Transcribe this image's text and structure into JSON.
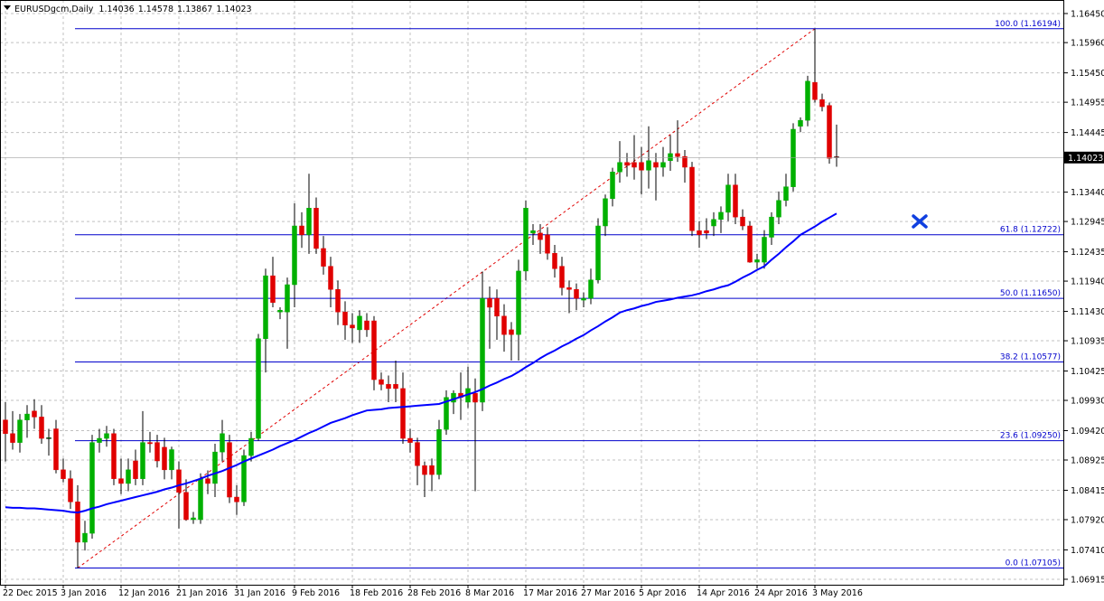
{
  "chart_data": {
    "type": "candlestick",
    "title": "EURUSDgcm,Daily",
    "up_color": "#00b000",
    "down_color": "#e00000",
    "grid": true,
    "ylim": [
      1.06823,
      1.16678
    ],
    "yticks": [
      {
        "value": 1.1645,
        "label": "1.16450"
      },
      {
        "value": 1.1596,
        "label": "1.15960"
      },
      {
        "value": 1.1545,
        "label": "1.15450"
      },
      1.14955,
      1.14445,
      {
        "value": 1.1344,
        "label": "1.13440"
      },
      1.12945,
      1.12435,
      {
        "value": 1.1194,
        "label": "1.11940"
      },
      {
        "value": 1.1143,
        "label": "1.11430"
      },
      1.10935,
      1.10425,
      {
        "value": 1.0993,
        "label": "1.09930"
      },
      {
        "value": 1.0942,
        "label": "1.09420"
      },
      1.08925,
      1.08415,
      {
        "value": 1.0792,
        "label": "1.07920"
      },
      {
        "value": 1.0741,
        "label": "1.07410"
      },
      1.06915
    ],
    "categories": [
      "22 Dec 2015",
      null,
      null,
      null,
      null,
      null,
      null,
      null,
      "3 Jan 2016",
      null,
      null,
      null,
      null,
      null,
      null,
      null,
      "12 Jan 2016",
      null,
      null,
      null,
      null,
      null,
      null,
      null,
      "21 Jan 2016",
      null,
      null,
      null,
      null,
      null,
      null,
      null,
      "31 Jan 2016",
      null,
      null,
      null,
      null,
      null,
      null,
      null,
      "9 Feb 2016",
      null,
      null,
      null,
      null,
      null,
      null,
      null,
      "18 Feb 2016",
      null,
      null,
      null,
      null,
      null,
      null,
      null,
      "28 Feb 2016",
      null,
      null,
      null,
      null,
      null,
      null,
      null,
      "8 Mar 2016",
      null,
      null,
      null,
      null,
      null,
      null,
      null,
      "17 Mar 2016",
      null,
      null,
      null,
      null,
      null,
      null,
      null,
      "27 Mar 2016",
      null,
      null,
      null,
      null,
      null,
      null,
      null,
      "5 Apr 2016",
      null,
      null,
      null,
      null,
      null,
      null,
      null,
      "14 Apr 2016",
      null,
      null,
      null,
      null,
      null,
      null,
      null,
      "24 Apr 2016",
      null,
      null,
      null,
      null,
      null,
      null,
      null,
      "3 May 2016",
      null,
      null,
      null
    ],
    "open": [
      1.096,
      1.0937,
      1.0922,
      1.096,
      1.0975,
      1.0965,
      1.0929,
      1.0945,
      1.0876,
      1.0861,
      1.0822,
      1.0754,
      1.0769,
      1.0922,
      1.0929,
      1.0937,
      1.0861,
      1.0853,
      1.0891,
      1.0861,
      1.0922,
      1.0922,
      1.0914,
      1.0876,
      1.0876,
      1.0838,
      1.0792,
      1.0792,
      1.0861,
      1.0853,
      1.0906,
      1.0922,
      1.083,
      1.0822,
      1.09,
      1.0929,
      1.1097,
      1.1203,
      1.1142,
      1.1142,
      1.1188,
      1.1287,
      1.1272,
      1.1317,
      1.1249,
      1.1219,
      1.118,
      1.1142,
      1.112,
      1.1112,
      1.1127,
      1.1127,
      1.1028,
      1.102,
      1.102,
      1.1013,
      1.0929,
      1.0922,
      1.0883,
      1.0883,
      1.0868,
      1.0944,
      1.099,
      1.1005,
      1.099,
      1.1005,
      1.099,
      1.1165,
      1.1165,
      1.1135,
      1.1112,
      1.1104,
      1.1211,
      1.1275,
      1.1275,
      1.1272,
      1.1241,
      1.1219,
      1.1183,
      1.118,
      1.1162,
      1.1165,
      1.1196,
      1.1287,
      1.1333,
      1.1378,
      1.1394,
      1.1394,
      1.1394,
      1.1381,
      1.1394,
      1.1386,
      1.1397,
      1.1409,
      1.1404,
      1.1386,
      1.1279,
      1.1279,
      1.1287,
      1.1298,
      1.131,
      1.1356,
      1.1302,
      1.1287,
      1.1226,
      1.1226,
      1.1268,
      1.1302,
      1.133,
      1.1353,
      1.1455,
      1.1465,
      1.1529,
      1.15,
      1.149,
      1.14036
    ],
    "high": [
      1.099,
      1.0975,
      1.097,
      1.0985,
      1.0995,
      1.0985,
      1.0945,
      1.096,
      1.0895,
      1.0875,
      1.085,
      1.079,
      1.0935,
      1.0945,
      1.095,
      1.0945,
      1.0895,
      1.0895,
      1.091,
      1.0975,
      1.094,
      1.0935,
      1.093,
      1.0915,
      1.089,
      1.086,
      1.0805,
      1.087,
      1.0875,
      1.092,
      1.096,
      1.0935,
      1.085,
      1.091,
      1.094,
      1.1105,
      1.1215,
      1.1235,
      1.115,
      1.12,
      1.1325,
      1.131,
      1.1375,
      1.1335,
      1.127,
      1.1235,
      1.1195,
      1.116,
      1.114,
      1.1145,
      1.114,
      1.1135,
      1.104,
      1.1035,
      1.106,
      1.104,
      1.0945,
      1.093,
      1.089,
      1.0895,
      1.096,
      1.101,
      1.101,
      1.104,
      1.105,
      1.103,
      1.121,
      1.1185,
      1.118,
      1.1155,
      1.1125,
      1.123,
      1.133,
      1.129,
      1.129,
      1.1285,
      1.1255,
      1.1235,
      1.1195,
      1.119,
      1.1175,
      1.1215,
      1.13,
      1.134,
      1.1385,
      1.143,
      1.141,
      1.144,
      1.142,
      1.1455,
      1.141,
      1.142,
      1.144,
      1.1465,
      1.1415,
      1.1395,
      1.1295,
      1.13,
      1.131,
      1.132,
      1.1375,
      1.1375,
      1.1315,
      1.1295,
      1.124,
      1.128,
      1.131,
      1.1345,
      1.1375,
      1.146,
      1.147,
      1.154,
      1.16194,
      1.151,
      1.1495,
      1.14578
    ],
    "low": [
      1.089,
      1.091,
      1.0905,
      1.093,
      1.0945,
      1.092,
      1.09,
      1.087,
      1.0855,
      1.081,
      1.07105,
      1.074,
      1.076,
      1.0905,
      1.0915,
      1.085,
      1.0835,
      1.084,
      1.085,
      1.085,
      1.0905,
      1.088,
      1.086,
      1.086,
      1.0777,
      1.079,
      1.0785,
      1.0785,
      1.0835,
      1.083,
      1.089,
      1.082,
      1.08,
      1.0815,
      1.089,
      1.0925,
      1.104,
      1.115,
      1.113,
      1.108,
      1.115,
      1.125,
      1.124,
      1.124,
      1.1205,
      1.115,
      1.112,
      1.1095,
      1.109,
      1.109,
      1.11,
      1.101,
      1.101,
      1.099,
      1.099,
      1.092,
      1.0905,
      1.085,
      1.083,
      1.084,
      1.086,
      1.0935,
      1.097,
      1.096,
      1.098,
      1.084,
      1.0975,
      1.108,
      1.1095,
      1.1075,
      1.106,
      1.106,
      1.1195,
      1.1255,
      1.124,
      1.123,
      1.12,
      1.117,
      1.114,
      1.1145,
      1.115,
      1.1155,
      1.119,
      1.127,
      1.132,
      1.136,
      1.137,
      1.1365,
      1.134,
      1.135,
      1.133,
      1.137,
      1.138,
      1.1395,
      1.136,
      1.127,
      1.125,
      1.1265,
      1.127,
      1.1275,
      1.1295,
      1.129,
      1.128,
      1.1225,
      1.1215,
      1.1215,
      1.1255,
      1.129,
      1.132,
      1.1345,
      1.1445,
      1.1455,
      1.1495,
      1.148,
      1.1392,
      1.13867
    ],
    "close": [
      1.0937,
      1.0922,
      1.096,
      1.097,
      1.0965,
      1.0929,
      1.093,
      1.0876,
      1.0861,
      1.0822,
      1.0754,
      1.0769,
      1.0922,
      1.0929,
      1.0937,
      1.0861,
      1.0853,
      1.0876,
      1.0861,
      1.0922,
      1.092,
      1.0891,
      1.0876,
      1.091,
      1.0838,
      1.0792,
      1.0795,
      1.0861,
      1.0853,
      1.0906,
      1.0937,
      1.083,
      1.0822,
      1.09,
      1.0929,
      1.1097,
      1.1203,
      1.1158,
      1.1145,
      1.1188,
      1.1287,
      1.1272,
      1.1317,
      1.1249,
      1.1219,
      1.118,
      1.1142,
      1.112,
      1.1115,
      1.1135,
      1.1112,
      1.1028,
      1.102,
      1.1013,
      1.1013,
      1.0929,
      1.0922,
      1.0883,
      1.0868,
      1.0868,
      1.0944,
      1.0998,
      1.1005,
      1.0998,
      1.1013,
      1.099,
      1.1165,
      1.115,
      1.1135,
      1.1104,
      1.1104,
      1.1211,
      1.1317,
      1.1279,
      1.1264,
      1.1241,
      1.1215,
      1.1183,
      1.118,
      1.1165,
      1.1165,
      1.1196,
      1.1287,
      1.1333,
      1.1378,
      1.1394,
      1.1389,
      1.1386,
      1.1381,
      1.1397,
      1.1386,
      1.1394,
      1.1409,
      1.1404,
      1.1386,
      1.1279,
      1.1272,
      1.1275,
      1.1298,
      1.131,
      1.1356,
      1.1302,
      1.1287,
      1.1226,
      1.123,
      1.1268,
      1.1302,
      1.133,
      1.1353,
      1.145,
      1.1465,
      1.1531,
      1.15,
      1.1488,
      1.1401,
      1.14023
    ],
    "moving_average": {
      "color": "#0000ff",
      "values": [
        1.0813,
        1.0812,
        1.0812,
        1.0811,
        1.0811,
        1.081,
        1.0809,
        1.0808,
        1.0807,
        1.0805,
        1.0804,
        1.0807,
        1.0811,
        1.0814,
        1.0818,
        1.0821,
        1.0824,
        1.0827,
        1.083,
        1.0833,
        1.0836,
        1.0839,
        1.0843,
        1.0846,
        1.085,
        1.0853,
        1.0857,
        1.0861,
        1.0866,
        1.087,
        1.0874,
        1.0879,
        1.0884,
        1.089,
        1.0895,
        1.09,
        1.0905,
        1.091,
        1.0916,
        1.0921,
        1.0926,
        1.0932,
        1.0938,
        1.0943,
        1.0949,
        1.0955,
        1.0959,
        1.0963,
        1.0968,
        1.0972,
        1.0976,
        1.0977,
        1.0978,
        1.098,
        1.0981,
        1.0982,
        1.0983,
        1.0984,
        1.0985,
        1.0986,
        1.0987,
        1.0991,
        1.0995,
        1.0999,
        1.1003,
        1.1007,
        1.1012,
        1.1018,
        1.1023,
        1.1029,
        1.1034,
        1.1041,
        1.1049,
        1.1056,
        1.1064,
        1.1071,
        1.1077,
        1.1084,
        1.109,
        1.1097,
        1.1103,
        1.1111,
        1.1118,
        1.1126,
        1.1133,
        1.1141,
        1.1145,
        1.1148,
        1.1152,
        1.1155,
        1.1159,
        1.1161,
        1.1163,
        1.1166,
        1.1168,
        1.117,
        1.1173,
        1.1177,
        1.118,
        1.1184,
        1.1187,
        1.1193,
        1.12,
        1.1206,
        1.1213,
        1.1219,
        1.123,
        1.124,
        1.1251,
        1.1261,
        1.1272,
        1.1279,
        1.1286,
        1.1294,
        1.1301,
        1.1308
      ]
    },
    "fibonacci": {
      "color": "#0000cc",
      "trend_color": "#e00000",
      "levels": [
        {
          "value": 1.16194,
          "label": "100.0 (1.16194)"
        },
        {
          "value": 1.12722,
          "label": "61.8 (1.12722)"
        },
        {
          "value": 1.1165,
          "label": "50.0 (1.11650)"
        },
        {
          "value": 1.10577,
          "label": "38.2 (1.10577)"
        },
        {
          "value": 1.0925,
          "label": "23.6 (1.09250)"
        },
        {
          "value": 1.07105,
          "label": "0.0 (1.07105)"
        }
      ]
    }
  }
}
